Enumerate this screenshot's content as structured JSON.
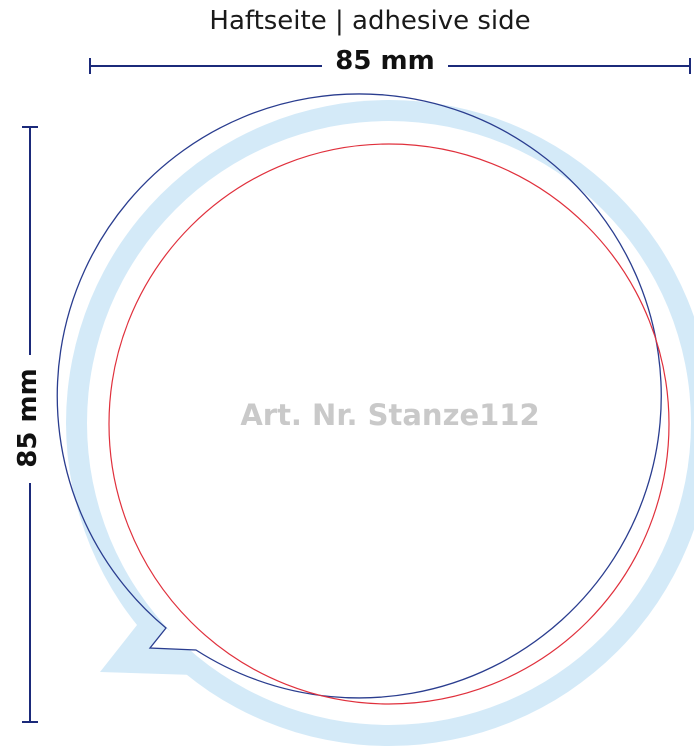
{
  "caption": "Haftseite | adhesive side",
  "dimensions": {
    "width_label": "85 mm",
    "height_label": "85 mm"
  },
  "article_label": "Art. Nr. Stanze112",
  "colors": {
    "bleed": "#d4eaf8",
    "cut_line": "#2a3d8f",
    "safe_line": "#e0303c",
    "dimension_line": "#1b2a7a"
  }
}
